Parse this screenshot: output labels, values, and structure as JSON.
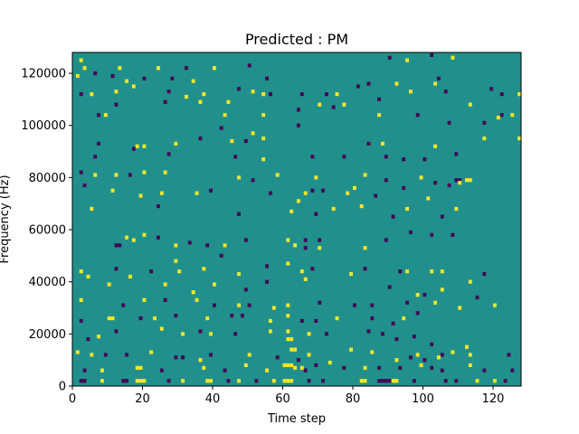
{
  "chart_data": {
    "type": "heatmap",
    "title": "Predicted : PM",
    "xlabel": "Time step",
    "ylabel": "Frequency (Hz)",
    "xlim": [
      0,
      128
    ],
    "ylim": [
      0,
      128000
    ],
    "xticks": [
      0,
      20,
      40,
      60,
      80,
      100,
      120
    ],
    "yticks": [
      0,
      20000,
      40000,
      60000,
      80000,
      100000,
      120000
    ],
    "colors": {
      "background": "#21908d",
      "positive": "#fde725",
      "negative": "#440154"
    },
    "note_values": {
      "background": 0,
      "positive": 1,
      "negative": -1
    },
    "cells": [
      [
        3,
        125000,
        1
      ],
      [
        4,
        122000,
        1
      ],
      [
        7,
        120000,
        -1
      ],
      [
        12,
        119000,
        -1
      ],
      [
        14,
        122000,
        1
      ],
      [
        25,
        122000,
        1
      ],
      [
        33,
        122000,
        -1
      ],
      [
        41,
        122000,
        1
      ],
      [
        51,
        123000,
        -1
      ],
      [
        91,
        126000,
        -1
      ],
      [
        96,
        125000,
        1
      ],
      [
        103,
        127000,
        -1
      ],
      [
        109,
        126000,
        1
      ],
      [
        2,
        119000,
        1
      ],
      [
        16,
        117000,
        1
      ],
      [
        21,
        118000,
        -1
      ],
      [
        29,
        118000,
        -1
      ],
      [
        35,
        117000,
        1
      ],
      [
        56,
        118000,
        -1
      ],
      [
        85,
        116000,
        -1
      ],
      [
        93,
        116000,
        1
      ],
      [
        105,
        118000,
        -1
      ],
      [
        104,
        116000,
        1
      ],
      [
        120,
        114000,
        -1
      ],
      [
        3,
        112000,
        -1
      ],
      [
        6,
        112000,
        1
      ],
      [
        13,
        113000,
        1
      ],
      [
        18,
        115000,
        1
      ],
      [
        28,
        113000,
        -1
      ],
      [
        33,
        111000,
        1
      ],
      [
        38,
        112000,
        1
      ],
      [
        48,
        114000,
        -1
      ],
      [
        52,
        113000,
        1
      ],
      [
        57,
        112000,
        -1
      ],
      [
        66,
        112000,
        -1
      ],
      [
        73,
        112000,
        -1
      ],
      [
        76,
        112000,
        1
      ],
      [
        82,
        115000,
        -1
      ],
      [
        88,
        110000,
        -1
      ],
      [
        107,
        113000,
        -1
      ],
      [
        123,
        112000,
        -1
      ],
      [
        128,
        112000,
        1
      ],
      [
        13,
        108000,
        -1
      ],
      [
        27,
        109000,
        -1
      ],
      [
        37,
        109000,
        1
      ],
      [
        45,
        109000,
        1
      ],
      [
        55,
        112000,
        1
      ],
      [
        65,
        106000,
        -1
      ],
      [
        71,
        108000,
        1
      ],
      [
        75,
        107000,
        -1
      ],
      [
        78,
        108000,
        1
      ],
      [
        97,
        113000,
        1
      ],
      [
        114,
        108000,
        1
      ],
      [
        8,
        104000,
        -1
      ],
      [
        10,
        104000,
        1
      ],
      [
        44,
        104000,
        1
      ],
      [
        55,
        104000,
        1
      ],
      [
        88,
        104000,
        1
      ],
      [
        99,
        104000,
        -1
      ],
      [
        123,
        104000,
        -1
      ],
      [
        126,
        104000,
        1
      ],
      [
        43,
        99000,
        -1
      ],
      [
        52,
        97000,
        1
      ],
      [
        55,
        95000,
        1
      ],
      [
        65,
        100000,
        -1
      ],
      [
        118,
        101000,
        -1
      ],
      [
        122,
        103000,
        1
      ],
      [
        108,
        101000,
        -1
      ],
      [
        8,
        93000,
        -1
      ],
      [
        19,
        92000,
        1
      ],
      [
        21,
        92000,
        1
      ],
      [
        30,
        93000,
        1
      ],
      [
        37,
        95000,
        -1
      ],
      [
        46,
        94000,
        1
      ],
      [
        50,
        94000,
        -1
      ],
      [
        85,
        93000,
        -1
      ],
      [
        89,
        93000,
        1
      ],
      [
        118,
        95000,
        1
      ],
      [
        128,
        95000,
        1
      ],
      [
        7,
        88000,
        -1
      ],
      [
        18,
        91000,
        -1
      ],
      [
        28,
        89000,
        -1
      ],
      [
        47,
        88000,
        -1
      ],
      [
        55,
        87000,
        1
      ],
      [
        69,
        88000,
        -1
      ],
      [
        78,
        88000,
        -1
      ],
      [
        90,
        88000,
        -1
      ],
      [
        95,
        87000,
        -1
      ],
      [
        101,
        87000,
        -1
      ],
      [
        104,
        92000,
        1
      ],
      [
        110,
        89000,
        -1
      ],
      [
        3,
        82000,
        -1
      ],
      [
        7,
        81000,
        1
      ],
      [
        13,
        81000,
        1
      ],
      [
        17,
        81000,
        -1
      ],
      [
        21,
        82000,
        1
      ],
      [
        27,
        82000,
        1
      ],
      [
        48,
        80000,
        1
      ],
      [
        52,
        79000,
        -1
      ],
      [
        59,
        81000,
        1
      ],
      [
        70,
        80000,
        1
      ],
      [
        84,
        81000,
        1
      ],
      [
        90,
        79000,
        -1
      ],
      [
        100,
        80000,
        1
      ],
      [
        110,
        79000,
        -1
      ],
      [
        111,
        79000,
        -1
      ],
      [
        113,
        79000,
        1
      ],
      [
        114,
        79000,
        1
      ],
      [
        4,
        77000,
        -1
      ],
      [
        12,
        75000,
        1
      ],
      [
        20,
        73000,
        1
      ],
      [
        26,
        74000,
        1
      ],
      [
        36,
        74000,
        1
      ],
      [
        40,
        75000,
        -1
      ],
      [
        57,
        74000,
        -1
      ],
      [
        67,
        74000,
        1
      ],
      [
        69,
        75000,
        -1
      ],
      [
        72,
        75000,
        -1
      ],
      [
        79,
        74000,
        1
      ],
      [
        81,
        76000,
        1
      ],
      [
        87,
        73000,
        -1
      ],
      [
        95,
        76000,
        -1
      ],
      [
        104,
        78000,
        -1
      ],
      [
        108,
        77000,
        -1
      ],
      [
        111,
        78000,
        1
      ],
      [
        6,
        68000,
        1
      ],
      [
        25,
        69000,
        -1
      ],
      [
        48,
        66000,
        -1
      ],
      [
        63,
        67000,
        1
      ],
      [
        65,
        71000,
        1
      ],
      [
        70,
        66000,
        -1
      ],
      [
        75,
        68000,
        1
      ],
      [
        83,
        69000,
        1
      ],
      [
        92,
        65000,
        -1
      ],
      [
        96,
        68000,
        1
      ],
      [
        102,
        72000,
        1
      ],
      [
        106,
        65000,
        -1
      ],
      [
        110,
        68000,
        1
      ],
      [
        13,
        54000,
        -1
      ],
      [
        14,
        54000,
        -1
      ],
      [
        16,
        57000,
        1
      ],
      [
        18,
        56000,
        1
      ],
      [
        21,
        58000,
        1
      ],
      [
        25,
        57000,
        -1
      ],
      [
        30,
        54000,
        1
      ],
      [
        34,
        55000,
        -1
      ],
      [
        39,
        54000,
        -1
      ],
      [
        44,
        54000,
        1
      ],
      [
        50,
        56000,
        -1
      ],
      [
        62,
        56000,
        1
      ],
      [
        64,
        54000,
        1
      ],
      [
        67,
        56000,
        -1
      ],
      [
        67,
        53000,
        -1
      ],
      [
        71,
        56000,
        -1
      ],
      [
        71,
        53000,
        1
      ],
      [
        84,
        53000,
        1
      ],
      [
        90,
        56000,
        -1
      ],
      [
        97,
        59000,
        -1
      ],
      [
        103,
        58000,
        -1
      ],
      [
        109,
        58000,
        -1
      ],
      [
        3,
        44000,
        1
      ],
      [
        13,
        45000,
        -1
      ],
      [
        23,
        44000,
        -1
      ],
      [
        30,
        48000,
        1
      ],
      [
        31,
        44000,
        1
      ],
      [
        38,
        45000,
        1
      ],
      [
        43,
        50000,
        -1
      ],
      [
        48,
        43000,
        1
      ],
      [
        56,
        46000,
        -1
      ],
      [
        62,
        47000,
        1
      ],
      [
        66,
        44000,
        1
      ],
      [
        69,
        45000,
        -1
      ],
      [
        80,
        43000,
        1
      ],
      [
        84,
        45000,
        -1
      ],
      [
        94,
        44000,
        -1
      ],
      [
        96,
        44000,
        1
      ],
      [
        103,
        44000,
        1
      ],
      [
        106,
        44000,
        1
      ],
      [
        118,
        43000,
        -1
      ],
      [
        5,
        42000,
        1
      ],
      [
        11,
        39000,
        1
      ],
      [
        17,
        42000,
        1
      ],
      [
        27,
        39000,
        1
      ],
      [
        35,
        36000,
        1
      ],
      [
        41,
        39000,
        1
      ],
      [
        50,
        37000,
        -1
      ],
      [
        56,
        40000,
        -1
      ],
      [
        67,
        41000,
        1
      ],
      [
        91,
        38000,
        -1
      ],
      [
        99,
        35000,
        1
      ],
      [
        101,
        35000,
        -1
      ],
      [
        106,
        37000,
        1
      ],
      [
        114,
        40000,
        1
      ],
      [
        3,
        33000,
        1
      ],
      [
        15,
        31000,
        -1
      ],
      [
        21,
        33000,
        1
      ],
      [
        27,
        33000,
        -1
      ],
      [
        36,
        33000,
        1
      ],
      [
        41,
        31000,
        -1
      ],
      [
        48,
        31000,
        1
      ],
      [
        51,
        31000,
        -1
      ],
      [
        58,
        30000,
        1
      ],
      [
        62,
        31000,
        1
      ],
      [
        71,
        32000,
        -1
      ],
      [
        81,
        31000,
        -1
      ],
      [
        86,
        31000,
        -1
      ],
      [
        96,
        32000,
        -1
      ],
      [
        104,
        32000,
        1
      ],
      [
        116,
        34000,
        -1
      ],
      [
        121,
        31000,
        1
      ],
      [
        3,
        25000,
        -1
      ],
      [
        11,
        26000,
        1
      ],
      [
        12,
        26000,
        1
      ],
      [
        20,
        26000,
        -1
      ],
      [
        24,
        26000,
        1
      ],
      [
        30,
        27000,
        -1
      ],
      [
        39,
        26000,
        1
      ],
      [
        46,
        27000,
        -1
      ],
      [
        49,
        27000,
        -1
      ],
      [
        57,
        25000,
        1
      ],
      [
        62,
        27000,
        1
      ],
      [
        66,
        25000,
        -1
      ],
      [
        70,
        25000,
        -1
      ],
      [
        76,
        26000,
        1
      ],
      [
        86,
        26000,
        -1
      ],
      [
        92,
        24000,
        -1
      ],
      [
        95,
        26000,
        1
      ],
      [
        99,
        28000,
        -1
      ],
      [
        111,
        30000,
        1
      ],
      [
        5,
        18000,
        -1
      ],
      [
        8,
        19000,
        1
      ],
      [
        13,
        21000,
        -1
      ],
      [
        26,
        22000,
        1
      ],
      [
        32,
        20000,
        1
      ],
      [
        37,
        21000,
        -1
      ],
      [
        40,
        20000,
        1
      ],
      [
        47,
        20000,
        -1
      ],
      [
        57,
        21000,
        1
      ],
      [
        62,
        21000,
        1
      ],
      [
        62,
        18000,
        1
      ],
      [
        63,
        18000,
        1
      ],
      [
        64,
        14000,
        1
      ],
      [
        68,
        20000,
        1
      ],
      [
        73,
        20000,
        -1
      ],
      [
        85,
        21000,
        -1
      ],
      [
        89,
        20000,
        -1
      ],
      [
        93,
        18000,
        -1
      ],
      [
        98,
        19000,
        -1
      ],
      [
        103,
        16000,
        -1
      ],
      [
        106,
        12000,
        -1
      ],
      [
        109,
        13000,
        1
      ],
      [
        113,
        15000,
        1
      ],
      [
        2,
        13000,
        1
      ],
      [
        6,
        12000,
        1
      ],
      [
        10,
        12000,
        -1
      ],
      [
        16,
        12000,
        -1
      ],
      [
        23,
        13000,
        1
      ],
      [
        30,
        11000,
        -1
      ],
      [
        32,
        11000,
        -1
      ],
      [
        37,
        10000,
        1
      ],
      [
        40,
        12000,
        -1
      ],
      [
        51,
        12000,
        1
      ],
      [
        59,
        11000,
        -1
      ],
      [
        63,
        14000,
        1
      ],
      [
        65,
        10000,
        -1
      ],
      [
        68,
        12000,
        1
      ],
      [
        80,
        14000,
        1
      ],
      [
        86,
        13000,
        1
      ],
      [
        93,
        10000,
        1
      ],
      [
        97,
        11000,
        -1
      ],
      [
        99,
        12000,
        1
      ],
      [
        101,
        10000,
        -1
      ],
      [
        105,
        11000,
        1
      ],
      [
        114,
        12000,
        1
      ],
      [
        125,
        12000,
        -1
      ],
      [
        4,
        6000,
        -1
      ],
      [
        9,
        6000,
        1
      ],
      [
        19,
        7000,
        1
      ],
      [
        20,
        7000,
        1
      ],
      [
        26,
        6000,
        -1
      ],
      [
        38,
        7000,
        1
      ],
      [
        44,
        6000,
        -1
      ],
      [
        50,
        8000,
        1
      ],
      [
        56,
        6000,
        1
      ],
      [
        61,
        8000,
        1
      ],
      [
        62,
        8000,
        1
      ],
      [
        63,
        8000,
        1
      ],
      [
        64,
        7000,
        1
      ],
      [
        66,
        7000,
        1
      ],
      [
        67,
        6000,
        -1
      ],
      [
        70,
        8000,
        -1
      ],
      [
        74,
        9000,
        1
      ],
      [
        78,
        7000,
        -1
      ],
      [
        84,
        7000,
        1
      ],
      [
        88,
        7000,
        -1
      ],
      [
        94,
        7000,
        -1
      ],
      [
        100,
        8000,
        1
      ],
      [
        103,
        7000,
        -1
      ],
      [
        106,
        6000,
        -1
      ],
      [
        114,
        8000,
        1
      ],
      [
        118,
        6000,
        -1
      ],
      [
        126,
        6000,
        -1
      ],
      [
        3,
        2000,
        -1
      ],
      [
        4,
        2000,
        -1
      ],
      [
        9,
        2000,
        1
      ],
      [
        15,
        2000,
        -1
      ],
      [
        16,
        2000,
        -1
      ],
      [
        19,
        2000,
        1
      ],
      [
        20,
        2000,
        1
      ],
      [
        21,
        2000,
        1
      ],
      [
        28,
        2000,
        -1
      ],
      [
        32,
        2000,
        1
      ],
      [
        39,
        2000,
        1
      ],
      [
        40,
        2000,
        1
      ],
      [
        45,
        2000,
        -1
      ],
      [
        48,
        2000,
        1
      ],
      [
        53,
        2000,
        -1
      ],
      [
        58,
        2000,
        1
      ],
      [
        61,
        2000,
        1
      ],
      [
        62,
        2000,
        1
      ],
      [
        63,
        2000,
        1
      ],
      [
        68,
        2000,
        -1
      ],
      [
        72,
        2000,
        -1
      ],
      [
        83,
        2000,
        1
      ],
      [
        84,
        2000,
        1
      ],
      [
        88,
        2000,
        -1
      ],
      [
        89,
        2000,
        -1
      ],
      [
        90,
        2000,
        -1
      ],
      [
        91,
        2000,
        -1
      ],
      [
        92,
        2000,
        1
      ],
      [
        93,
        2000,
        1
      ],
      [
        98,
        2000,
        -1
      ],
      [
        107,
        2000,
        -1
      ],
      [
        110,
        2000,
        -1
      ],
      [
        116,
        2000,
        1
      ],
      [
        121,
        2000,
        1
      ],
      [
        124,
        2000,
        -1
      ]
    ]
  }
}
